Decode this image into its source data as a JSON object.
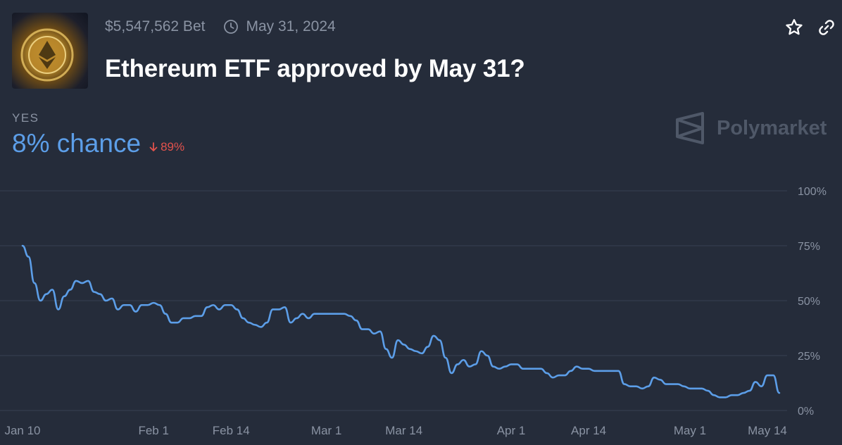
{
  "header": {
    "volume": "$5,547,562 Bet",
    "end_date": "May 31, 2024",
    "title": "Ethereum ETF approved by May 31?"
  },
  "icons": {
    "thumbnail": "ethereum-coin-image",
    "clock": "clock-icon",
    "star": "star-icon",
    "link": "link-icon",
    "change_arrow": "arrow-down-icon",
    "brand_logo": "polymarket-logo-icon"
  },
  "outcome": {
    "label": "YES",
    "chance": "8% chance",
    "change": "89%"
  },
  "brand": {
    "name": "Polymarket"
  },
  "colors": {
    "background": "#252c3a",
    "line": "#5c9ee8",
    "negative": "#e2524d",
    "muted": "#8a93a3",
    "grid": "#384152"
  },
  "chart_data": {
    "type": "line",
    "ylim": [
      0,
      100
    ],
    "y_ticks": [
      100,
      75,
      50,
      25,
      0
    ],
    "y_tick_labels": [
      "100%",
      "75%",
      "50%",
      "25%",
      "0%"
    ],
    "x_tick_labels": [
      "Jan 10",
      "Feb 1",
      "Feb 14",
      "Mar 1",
      "Mar 14",
      "Apr 1",
      "Apr 14",
      "May 1",
      "May 14"
    ],
    "x_tick_dates": [
      "2024-01-10",
      "2024-02-01",
      "2024-02-14",
      "2024-03-01",
      "2024-03-14",
      "2024-04-01",
      "2024-04-14",
      "2024-05-01",
      "2024-05-14"
    ],
    "grid": true,
    "series": [
      {
        "points": [
          [
            "2024-01-10",
            75
          ],
          [
            "2024-01-11",
            70
          ],
          [
            "2024-01-12",
            58
          ],
          [
            "2024-01-13",
            50
          ],
          [
            "2024-01-14",
            53
          ],
          [
            "2024-01-15",
            55
          ],
          [
            "2024-01-16",
            46
          ],
          [
            "2024-01-17",
            52
          ],
          [
            "2024-01-18",
            55
          ],
          [
            "2024-01-19",
            59
          ],
          [
            "2024-01-20",
            58
          ],
          [
            "2024-01-21",
            59
          ],
          [
            "2024-01-22",
            54
          ],
          [
            "2024-01-23",
            53
          ],
          [
            "2024-01-24",
            50
          ],
          [
            "2024-01-25",
            51
          ],
          [
            "2024-01-26",
            46
          ],
          [
            "2024-01-27",
            48
          ],
          [
            "2024-01-28",
            48
          ],
          [
            "2024-01-29",
            45
          ],
          [
            "2024-01-30",
            48
          ],
          [
            "2024-01-31",
            48
          ],
          [
            "2024-02-01",
            49
          ],
          [
            "2024-02-02",
            48
          ],
          [
            "2024-02-03",
            44
          ],
          [
            "2024-02-04",
            40
          ],
          [
            "2024-02-05",
            40
          ],
          [
            "2024-02-06",
            42
          ],
          [
            "2024-02-07",
            42
          ],
          [
            "2024-02-08",
            43
          ],
          [
            "2024-02-09",
            43
          ],
          [
            "2024-02-10",
            47
          ],
          [
            "2024-02-11",
            48
          ],
          [
            "2024-02-12",
            46
          ],
          [
            "2024-02-13",
            48
          ],
          [
            "2024-02-14",
            48
          ],
          [
            "2024-02-15",
            46
          ],
          [
            "2024-02-16",
            42
          ],
          [
            "2024-02-17",
            40
          ],
          [
            "2024-02-18",
            39
          ],
          [
            "2024-02-19",
            38
          ],
          [
            "2024-02-20",
            40
          ],
          [
            "2024-02-21",
            46
          ],
          [
            "2024-02-22",
            46
          ],
          [
            "2024-02-23",
            47
          ],
          [
            "2024-02-24",
            40
          ],
          [
            "2024-02-25",
            42
          ],
          [
            "2024-02-26",
            44
          ],
          [
            "2024-02-27",
            42
          ],
          [
            "2024-02-28",
            44
          ],
          [
            "2024-02-29",
            44
          ],
          [
            "2024-03-01",
            44
          ],
          [
            "2024-03-02",
            44
          ],
          [
            "2024-03-03",
            44
          ],
          [
            "2024-03-04",
            44
          ],
          [
            "2024-03-05",
            43
          ],
          [
            "2024-03-06",
            41
          ],
          [
            "2024-03-07",
            37
          ],
          [
            "2024-03-08",
            37
          ],
          [
            "2024-03-09",
            35
          ],
          [
            "2024-03-10",
            36
          ],
          [
            "2024-03-11",
            28
          ],
          [
            "2024-03-12",
            24
          ],
          [
            "2024-03-13",
            32
          ],
          [
            "2024-03-14",
            30
          ],
          [
            "2024-03-15",
            28
          ],
          [
            "2024-03-16",
            27
          ],
          [
            "2024-03-17",
            26
          ],
          [
            "2024-03-18",
            29
          ],
          [
            "2024-03-19",
            34
          ],
          [
            "2024-03-20",
            32
          ],
          [
            "2024-03-21",
            24
          ],
          [
            "2024-03-22",
            17
          ],
          [
            "2024-03-23",
            21
          ],
          [
            "2024-03-24",
            23
          ],
          [
            "2024-03-25",
            20
          ],
          [
            "2024-03-26",
            21
          ],
          [
            "2024-03-27",
            27
          ],
          [
            "2024-03-28",
            25
          ],
          [
            "2024-03-29",
            20
          ],
          [
            "2024-03-30",
            19
          ],
          [
            "2024-03-31",
            20
          ],
          [
            "2024-04-01",
            21
          ],
          [
            "2024-04-02",
            21
          ],
          [
            "2024-04-03",
            19
          ],
          [
            "2024-04-04",
            19
          ],
          [
            "2024-04-05",
            19
          ],
          [
            "2024-04-06",
            19
          ],
          [
            "2024-04-07",
            17
          ],
          [
            "2024-04-08",
            15
          ],
          [
            "2024-04-09",
            16
          ],
          [
            "2024-04-10",
            16
          ],
          [
            "2024-04-11",
            18
          ],
          [
            "2024-04-12",
            20
          ],
          [
            "2024-04-13",
            19
          ],
          [
            "2024-04-14",
            19
          ],
          [
            "2024-04-15",
            18
          ],
          [
            "2024-04-16",
            18
          ],
          [
            "2024-04-17",
            18
          ],
          [
            "2024-04-18",
            18
          ],
          [
            "2024-04-19",
            18
          ],
          [
            "2024-04-20",
            12
          ],
          [
            "2024-04-21",
            11
          ],
          [
            "2024-04-22",
            11
          ],
          [
            "2024-04-23",
            10
          ],
          [
            "2024-04-24",
            11
          ],
          [
            "2024-04-25",
            15
          ],
          [
            "2024-04-26",
            14
          ],
          [
            "2024-04-27",
            12
          ],
          [
            "2024-04-28",
            12
          ],
          [
            "2024-04-29",
            12
          ],
          [
            "2024-04-30",
            11
          ],
          [
            "2024-05-01",
            10
          ],
          [
            "2024-05-02",
            10
          ],
          [
            "2024-05-03",
            10
          ],
          [
            "2024-05-04",
            9
          ],
          [
            "2024-05-05",
            7
          ],
          [
            "2024-05-06",
            6
          ],
          [
            "2024-05-07",
            6
          ],
          [
            "2024-05-08",
            7
          ],
          [
            "2024-05-09",
            7
          ],
          [
            "2024-05-10",
            8
          ],
          [
            "2024-05-11",
            9
          ],
          [
            "2024-05-12",
            13
          ],
          [
            "2024-05-13",
            11
          ],
          [
            "2024-05-14",
            16
          ],
          [
            "2024-05-15",
            16
          ],
          [
            "2024-05-16",
            8
          ]
        ]
      }
    ]
  }
}
